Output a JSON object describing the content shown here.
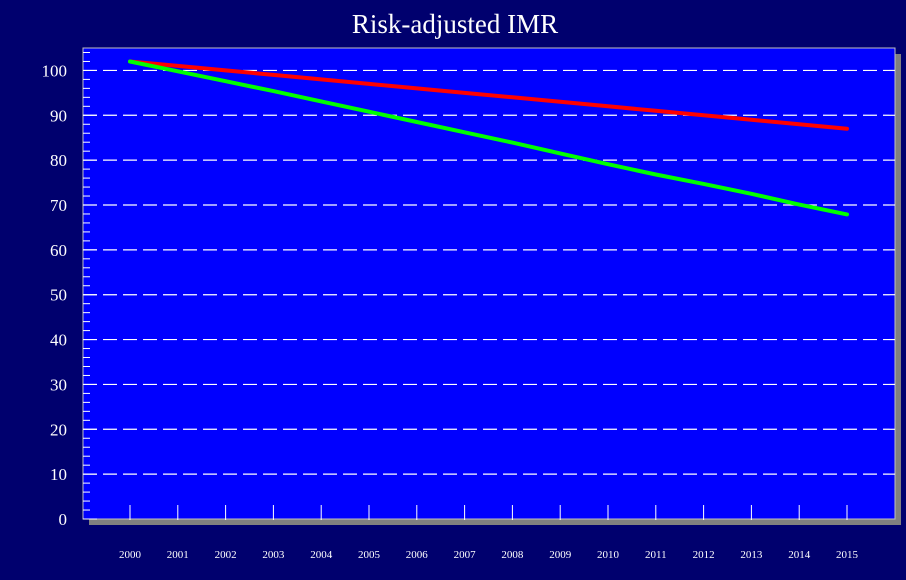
{
  "chart_data": {
    "type": "line",
    "title": "Risk-adjusted IMR",
    "xlabel": "",
    "ylabel": "",
    "x": [
      "2000",
      "2001",
      "2002",
      "2003",
      "2004",
      "2005",
      "2006",
      "2007",
      "2008",
      "2009",
      "2010",
      "2011",
      "2012",
      "2013",
      "2014",
      "2015"
    ],
    "ylim": [
      0,
      105
    ],
    "yticks": [
      0,
      10,
      20,
      30,
      40,
      50,
      60,
      70,
      80,
      90,
      100
    ],
    "grid": true,
    "legend": "none",
    "series": [
      {
        "color": "#ff0000",
        "values": [
          102,
          101,
          100,
          99,
          98,
          97,
          96,
          95,
          94,
          93,
          92,
          91,
          90,
          89,
          88,
          87
        ]
      },
      {
        "color": "#00ff00",
        "values": [
          102,
          99.8,
          97.6,
          95.4,
          93.1,
          90.8,
          88.5,
          86.2,
          83.9,
          81.5,
          79.1,
          76.8,
          74.7,
          72.5,
          70.1,
          67.9
        ]
      }
    ],
    "colors": {
      "background": "#00006e",
      "plot_area": "#0000ff",
      "grid": "#ffffff",
      "shadow": "#808080",
      "text": "#ffffff"
    }
  }
}
